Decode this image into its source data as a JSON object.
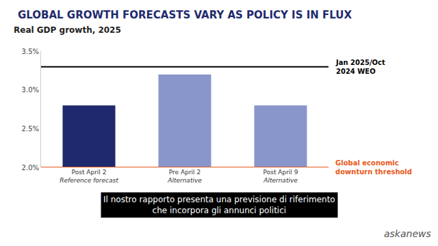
{
  "chart_data": {
    "type": "bar",
    "title": "GLOBAL GROWTH FORECASTS VARY AS POLICY IS IN FLUX",
    "subtitle": "Real GDP growth, 2025",
    "categories": [
      "Post April 2",
      "Pre April 2",
      "Post April 9"
    ],
    "category_sublabels": [
      "Reference forecast",
      "Alternative",
      "Alternative"
    ],
    "values": [
      2.8,
      3.2,
      2.8
    ],
    "colors": [
      "#1f2a6e",
      "#8896cc",
      "#8896cc"
    ],
    "ylim": [
      2.0,
      3.5
    ],
    "yticks": [
      {
        "value": 2.0,
        "label": "2.0%"
      },
      {
        "value": 2.5,
        "label": "2.5%"
      },
      {
        "value": 3.0,
        "label": "3.0%"
      },
      {
        "value": 3.5,
        "label": "3.5%"
      }
    ],
    "grid": false,
    "reference_lines": [
      {
        "value": 3.3,
        "lines": [
          "Jan 2025/Oct",
          "2024 WEO"
        ],
        "color": "#000000"
      },
      {
        "value": 2.0,
        "lines": [
          "Global economic",
          "downturn threshold"
        ],
        "color": "#e8591a"
      }
    ],
    "caption": [
      "Il nostro rapporto presenta una previsione di riferimento",
      "che incorpora gli annunci politici"
    ],
    "logo": "askanews"
  }
}
